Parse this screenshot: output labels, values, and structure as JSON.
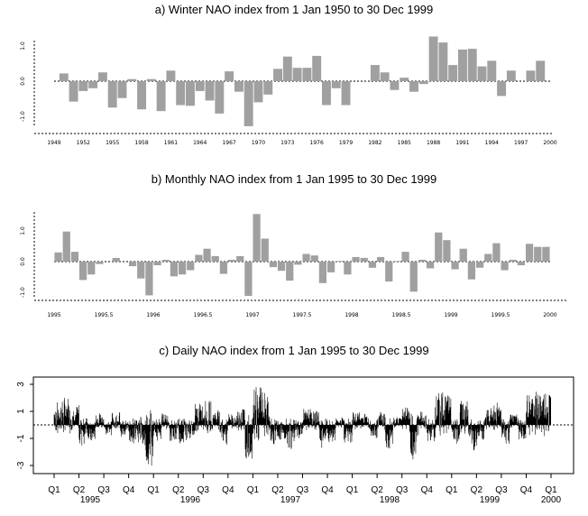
{
  "chart_data": [
    {
      "type": "bar",
      "title": "a) Winter NAO index from 1 Jan 1950 to 30 Dec 1999",
      "xlabel": "",
      "ylabel": "",
      "ylim": [
        -1.3,
        1.3
      ],
      "y_ticks": [
        "1.0",
        "0.0",
        "-1.0"
      ],
      "x_ticks": [
        "1949",
        "1952",
        "1955",
        "1958",
        "1961",
        "1964",
        "1967",
        "1970",
        "1973",
        "1976",
        "1979",
        "1982",
        "1985",
        "1988",
        "1991",
        "1994",
        "1997",
        "2000"
      ],
      "x_tick_values": [
        1949,
        1952,
        1955,
        1958,
        1961,
        1964,
        1967,
        1970,
        1973,
        1976,
        1979,
        1982,
        1985,
        1988,
        1991,
        1994,
        1997,
        2000
      ],
      "x_range": [
        1949,
        2000
      ],
      "bar_color": "#a0a0a0",
      "x": [
        1950,
        1951,
        1952,
        1953,
        1954,
        1955,
        1956,
        1957,
        1958,
        1959,
        1960,
        1961,
        1962,
        1963,
        1964,
        1965,
        1966,
        1967,
        1968,
        1969,
        1970,
        1971,
        1972,
        1973,
        1974,
        1975,
        1976,
        1977,
        1978,
        1979,
        1980,
        1981,
        1982,
        1983,
        1984,
        1985,
        1986,
        1987,
        1988,
        1989,
        1990,
        1991,
        1992,
        1993,
        1994,
        1995,
        1996,
        1997,
        1998,
        1999
      ],
      "values": [
        0.22,
        -0.58,
        -0.28,
        -0.2,
        0.25,
        -0.75,
        -0.48,
        0.06,
        -0.8,
        0.06,
        -0.85,
        0.3,
        -0.68,
        -0.7,
        -0.28,
        -0.55,
        -0.92,
        0.28,
        -0.3,
        -1.28,
        -0.6,
        -0.38,
        0.35,
        0.7,
        0.38,
        0.38,
        0.72,
        -0.68,
        -0.2,
        -0.68,
        0.0,
        0.0,
        0.46,
        0.25,
        -0.25,
        0.1,
        -0.3,
        -0.08,
        1.27,
        1.1,
        0.46,
        0.9,
        0.92,
        0.42,
        0.58,
        -0.42,
        0.3,
        0.0,
        0.3,
        0.58
      ]
    },
    {
      "type": "bar",
      "title": "b) Monthly NAO index from 1 Jan 1995 to 30 Dec 1999",
      "xlabel": "",
      "ylabel": "",
      "ylim": [
        -1.2,
        1.6
      ],
      "y_ticks": [
        "1.0",
        "0.0",
        "-1.0"
      ],
      "x_ticks": [
        "1995",
        "1995.5",
        "1996",
        "1996.5",
        "1997",
        "1997.5",
        "1998",
        "1998.5",
        "1999",
        "1999.5",
        "2000"
      ],
      "x_tick_values": [
        1995,
        1995.5,
        1996,
        1996.5,
        1997,
        1997.5,
        1998,
        1998.5,
        1999,
        1999.5,
        2000
      ],
      "x_range": [
        1995,
        2000
      ],
      "bar_color": "#a0a0a0",
      "values": [
        0.3,
        0.98,
        0.32,
        -0.6,
        -0.42,
        -0.08,
        0.0,
        0.12,
        0.0,
        -0.15,
        -0.55,
        -1.1,
        -0.12,
        0.06,
        -0.48,
        -0.42,
        -0.28,
        0.22,
        0.42,
        0.18,
        -0.4,
        0.06,
        0.18,
        -1.12,
        1.55,
        0.75,
        -0.18,
        -0.3,
        -0.62,
        -0.1,
        0.25,
        0.2,
        -0.7,
        -0.35,
        0.02,
        -0.42,
        0.15,
        0.12,
        -0.2,
        0.15,
        -0.65,
        0.02,
        0.32,
        -0.98,
        0.06,
        -0.22,
        0.95,
        0.7,
        -0.25,
        0.42,
        -0.58,
        -0.2,
        0.25,
        0.6,
        -0.28,
        0.06,
        -0.12,
        0.58,
        0.48,
        0.48
      ]
    },
    {
      "type": "bar",
      "title": "c) Daily NAO index from 1 Jan 1995 to 30 Dec 1999",
      "xlabel": "",
      "ylabel": "",
      "ylim": [
        -3.5,
        3.5
      ],
      "y_ticks": [
        "3",
        "1",
        "-1",
        "-3"
      ],
      "y_tick_values": [
        3,
        1,
        -1,
        -3
      ],
      "quarter_ticks": [
        "Q1",
        "Q2",
        "Q3",
        "Q4",
        "Q1",
        "Q2",
        "Q3",
        "Q4",
        "Q1",
        "Q2",
        "Q3",
        "Q4",
        "Q1",
        "Q2",
        "Q3",
        "Q4",
        "Q1",
        "Q2",
        "Q3",
        "Q4",
        "Q1"
      ],
      "year_labels": [
        "1995",
        "1996",
        "1997",
        "1998",
        "1999",
        "2000"
      ],
      "x_range": [
        1995,
        2000
      ],
      "bar_color": "#000000",
      "note": "daily series shown as dense spikes; monthly envelope values in data units",
      "monthly_envelope": [
        1.8,
        2.2,
        1.5,
        -1.6,
        -1.2,
        0.9,
        -0.8,
        1.0,
        -0.9,
        -1.4,
        -1.8,
        -3.2,
        -1.3,
        0.9,
        -1.2,
        -1.4,
        -1.0,
        1.6,
        1.8,
        1.1,
        -1.5,
        0.8,
        1.2,
        -2.8,
        3.3,
        2.6,
        -1.5,
        -1.3,
        -1.8,
        -1.0,
        1.2,
        1.1,
        -1.7,
        -1.3,
        0.6,
        -1.4,
        1.0,
        0.9,
        -1.0,
        1.1,
        -2.0,
        0.6,
        1.5,
        -2.6,
        1.0,
        -1.3,
        2.4,
        2.2,
        -1.5,
        1.9,
        -1.9,
        -1.1,
        1.3,
        1.8,
        -1.4,
        0.8,
        -1.1,
        2.2,
        2.5,
        2.6
      ]
    }
  ]
}
